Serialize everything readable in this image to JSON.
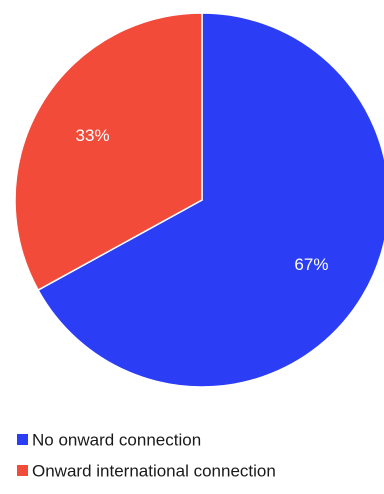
{
  "chart_data": {
    "type": "pie",
    "title": "",
    "slices": [
      {
        "label": "No onward connection",
        "value": 67,
        "display": "67%",
        "color": "#2b3ef5"
      },
      {
        "label": "Onward international connection",
        "value": 33,
        "display": "33%",
        "color": "#f24b3a"
      }
    ],
    "start_angle": "12 o'clock",
    "direction": "clockwise",
    "legend": {
      "position": "bottom-left"
    },
    "colors": {
      "label_text": "#ffffff",
      "legend_text": "#1a1a1a",
      "slice_border": "#ffffff"
    }
  }
}
